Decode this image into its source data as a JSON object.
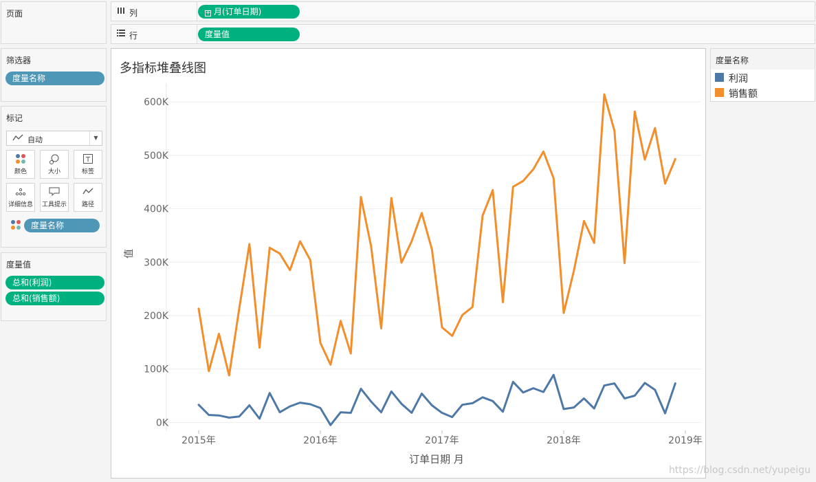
{
  "left_panel": {
    "pages": {
      "title": "页面"
    },
    "filters": {
      "title": "筛选器",
      "pill": "度量名称"
    },
    "marks": {
      "title": "标记",
      "type": "自动",
      "buttons": [
        {
          "label": "颜色",
          "icon": "color-dots-icon"
        },
        {
          "label": "大小",
          "icon": "size-icon"
        },
        {
          "label": "标签",
          "icon": "text-icon"
        },
        {
          "label": "详细信息",
          "icon": "detail-dots-icon"
        },
        {
          "label": "工具提示",
          "icon": "tooltip-icon"
        },
        {
          "label": "路径",
          "icon": "path-icon"
        }
      ],
      "color_pill": "度量名称"
    },
    "measure_values": {
      "title": "度量值",
      "pills": [
        "总和(利润)",
        "总和(销售额)"
      ]
    }
  },
  "shelves": {
    "columns": {
      "label": "列",
      "pill": "月(订单日期)"
    },
    "rows": {
      "label": "行",
      "pill": "度量值"
    }
  },
  "legend": {
    "title": "度量名称",
    "items": [
      {
        "label": "利润",
        "color": "#4e79a7"
      },
      {
        "label": "销售额",
        "color": "#f28e2b"
      }
    ]
  },
  "watermark": "https://blog.csdn.net/yupeigu",
  "colors": {
    "pill_blue": "#4f97b6",
    "pill_green": "#00b180",
    "profit": "#4e79a7",
    "sales": "#f28e2b"
  },
  "chart_data": {
    "type": "line",
    "title": "多指标堆叠线图",
    "xlabel": "订单日期 月",
    "ylabel": "值",
    "x_tick_labels": [
      "2015年",
      "2016年",
      "2017年",
      "2018年",
      "2019年"
    ],
    "y_tick_labels": [
      "0K",
      "100K",
      "200K",
      "300K",
      "400K",
      "500K",
      "600K"
    ],
    "ylim": [
      -15000,
      635000
    ],
    "x": [
      "2015-01",
      "2015-02",
      "2015-03",
      "2015-04",
      "2015-05",
      "2015-06",
      "2015-07",
      "2015-08",
      "2015-09",
      "2015-10",
      "2015-11",
      "2015-12",
      "2016-01",
      "2016-02",
      "2016-03",
      "2016-04",
      "2016-05",
      "2016-06",
      "2016-07",
      "2016-08",
      "2016-09",
      "2016-10",
      "2016-11",
      "2016-12",
      "2017-01",
      "2017-02",
      "2017-03",
      "2017-04",
      "2017-05",
      "2017-06",
      "2017-07",
      "2017-08",
      "2017-09",
      "2017-10",
      "2017-11",
      "2017-12",
      "2018-01",
      "2018-02",
      "2018-03",
      "2018-04",
      "2018-05",
      "2018-06",
      "2018-07",
      "2018-08",
      "2018-09",
      "2018-10",
      "2018-11",
      "2018-12"
    ],
    "series": [
      {
        "name": "利润",
        "values": [
          33000,
          14000,
          13000,
          9000,
          11000,
          32000,
          7000,
          55000,
          19000,
          30000,
          37000,
          34000,
          27000,
          -5000,
          19000,
          18000,
          63000,
          39000,
          19000,
          58000,
          35000,
          18000,
          54000,
          32000,
          18000,
          10000,
          33000,
          36000,
          47000,
          40000,
          20000,
          76000,
          56000,
          64000,
          57000,
          89000,
          25000,
          28000,
          45000,
          26000,
          69000,
          73000,
          45000,
          50000,
          74000,
          61000,
          17000,
          73000
        ]
      },
      {
        "name": "销售额",
        "values": [
          213000,
          96000,
          166000,
          88000,
          213000,
          334000,
          140000,
          327000,
          316000,
          285000,
          339000,
          304000,
          149000,
          108000,
          190000,
          129000,
          422000,
          330000,
          176000,
          420000,
          299000,
          339000,
          392000,
          324000,
          178000,
          162000,
          201000,
          216000,
          387000,
          435000,
          225000,
          441000,
          452000,
          474000,
          507000,
          457000,
          205000,
          284000,
          377000,
          336000,
          614000,
          546000,
          298000,
          582000,
          492000,
          551000,
          447000,
          493000
        ]
      }
    ]
  }
}
